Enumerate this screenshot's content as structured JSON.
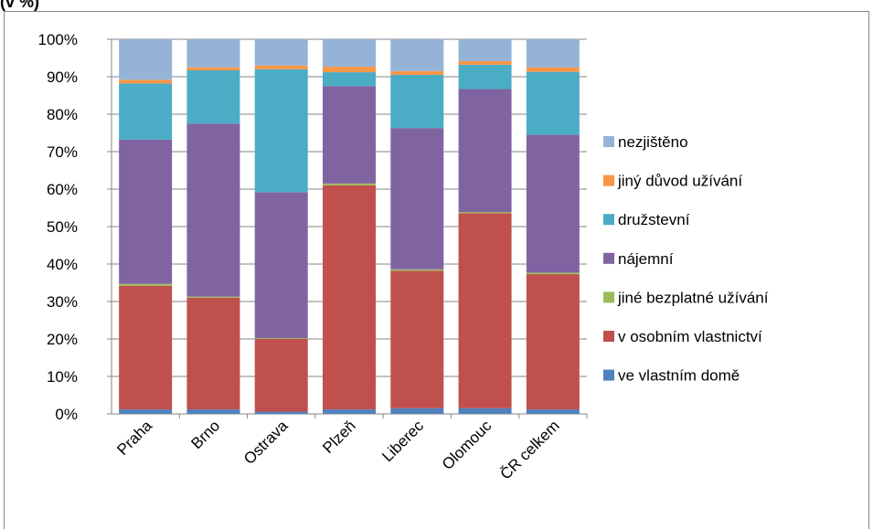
{
  "chart_data": {
    "type": "stacked_bar_100",
    "title": "(v %)",
    "categories": [
      "Praha",
      "Brno",
      "Ostrava",
      "Plzeň",
      "Liberec",
      "Olomouc",
      "ČR celkem"
    ],
    "series": [
      {
        "name": "ve vlastním domě",
        "color": "#4f81bd",
        "values": [
          1.2,
          1.2,
          0.6,
          1.2,
          1.5,
          1.5,
          1.2
        ]
      },
      {
        "name": "v osobním vlastnictví",
        "color": "#c0504d",
        "values": [
          33,
          29.8,
          19.4,
          59.8,
          36.7,
          52.1,
          36.1
        ]
      },
      {
        "name": "jiné bezplatné užívání",
        "color": "#9bbb59",
        "values": [
          0.5,
          0.3,
          0.2,
          0.5,
          0.4,
          0.3,
          0.4
        ]
      },
      {
        "name": "nájemní",
        "color": "#8064a2",
        "values": [
          38.5,
          46.2,
          39,
          26,
          37.7,
          32.8,
          36.8
        ]
      },
      {
        "name": "družstevní",
        "color": "#4bacc6",
        "values": [
          15,
          14.2,
          32.8,
          3.7,
          14.2,
          6.5,
          16.8
        ]
      },
      {
        "name": "jiný důvod užívání",
        "color": "#f79646",
        "values": [
          1,
          0.8,
          1,
          1.5,
          1,
          1,
          1.2
        ]
      },
      {
        "name": "nezjištěno",
        "color": "#95b3d7",
        "values": [
          10.8,
          7.5,
          7,
          7.3,
          8.5,
          5.8,
          7.5
        ]
      }
    ],
    "ylim": [
      0,
      100
    ],
    "yticks": [
      {
        "value": 0,
        "label": "0%"
      },
      {
        "value": 10,
        "label": "10%"
      },
      {
        "value": 20,
        "label": "20%"
      },
      {
        "value": 30,
        "label": "30%"
      },
      {
        "value": 40,
        "label": "40%"
      },
      {
        "value": 50,
        "label": "50%"
      },
      {
        "value": 60,
        "label": "60%"
      },
      {
        "value": 70,
        "label": "70%"
      },
      {
        "value": 80,
        "label": "80%"
      },
      {
        "value": 90,
        "label": "90%"
      },
      {
        "value": 100,
        "label": "100%"
      }
    ],
    "grid": true
  }
}
